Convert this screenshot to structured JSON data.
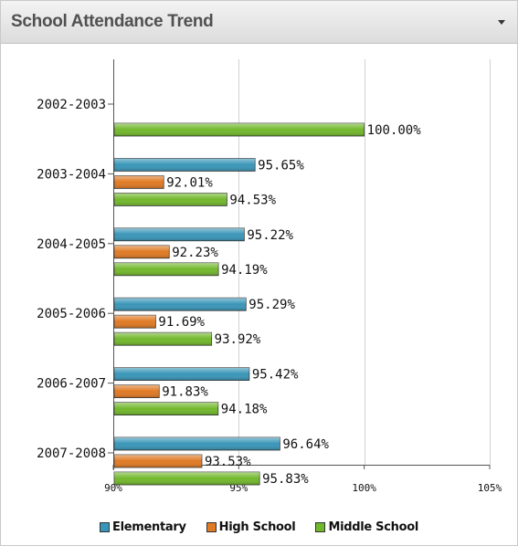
{
  "widget": {
    "title": "School Attendance Trend",
    "menu_icon": "chevron-down-icon"
  },
  "chart_data": {
    "type": "bar",
    "orientation": "horizontal",
    "title": "",
    "xlabel": "",
    "ylabel": "",
    "xlim": [
      90,
      105
    ],
    "x_ticks": [
      90,
      95,
      100,
      105
    ],
    "x_tick_labels": [
      "90%",
      "95%",
      "100%",
      "105%"
    ],
    "grid": true,
    "legend_position": "bottom",
    "categories": [
      "2002-2003",
      "2003-2004",
      "2004-2005",
      "2005-2006",
      "2006-2007",
      "2007-2008"
    ],
    "series": [
      {
        "name": "Elementary",
        "color": "#3a96b8",
        "values": [
          null,
          95.65,
          95.22,
          95.29,
          95.42,
          96.64
        ],
        "labels": [
          "",
          "95.65%",
          "95.22%",
          "95.29%",
          "95.42%",
          "96.64%"
        ]
      },
      {
        "name": "High School",
        "color": "#e07a24",
        "values": [
          null,
          92.01,
          92.23,
          91.69,
          91.83,
          93.53
        ],
        "labels": [
          "",
          "92.01%",
          "92.23%",
          "91.69%",
          "91.83%",
          "93.53%"
        ]
      },
      {
        "name": "Middle School",
        "color": "#72b82c",
        "values": [
          100.0,
          94.53,
          94.19,
          93.92,
          94.18,
          95.83
        ],
        "labels": [
          "100.00%",
          "94.53%",
          "94.19%",
          "93.92%",
          "94.18%",
          "95.83%"
        ]
      }
    ]
  }
}
